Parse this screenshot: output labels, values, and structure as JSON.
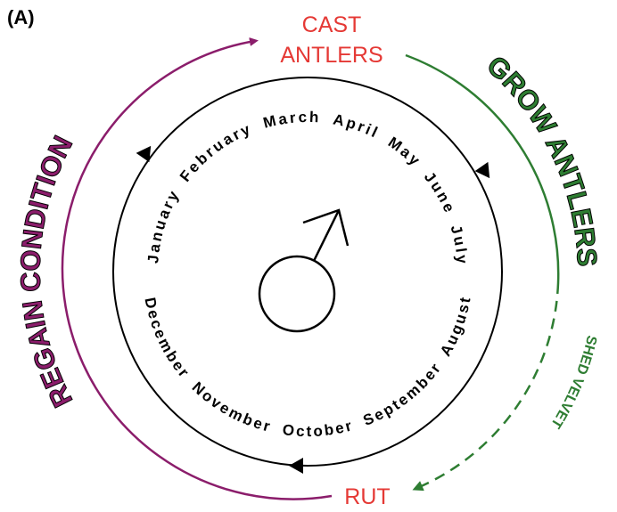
{
  "panel_label": "(A)",
  "labels": {
    "cast": "CAST",
    "antlers": "ANTLERS",
    "grow": "GROW ANTLERS",
    "shed": "SHED VELVET",
    "rut": "RUT",
    "regain": "REGAIN CONDITION"
  },
  "months": [
    "January",
    "February",
    "March",
    "April",
    "May",
    "June",
    "July",
    "August",
    "September",
    "October",
    "November",
    "December"
  ]
}
